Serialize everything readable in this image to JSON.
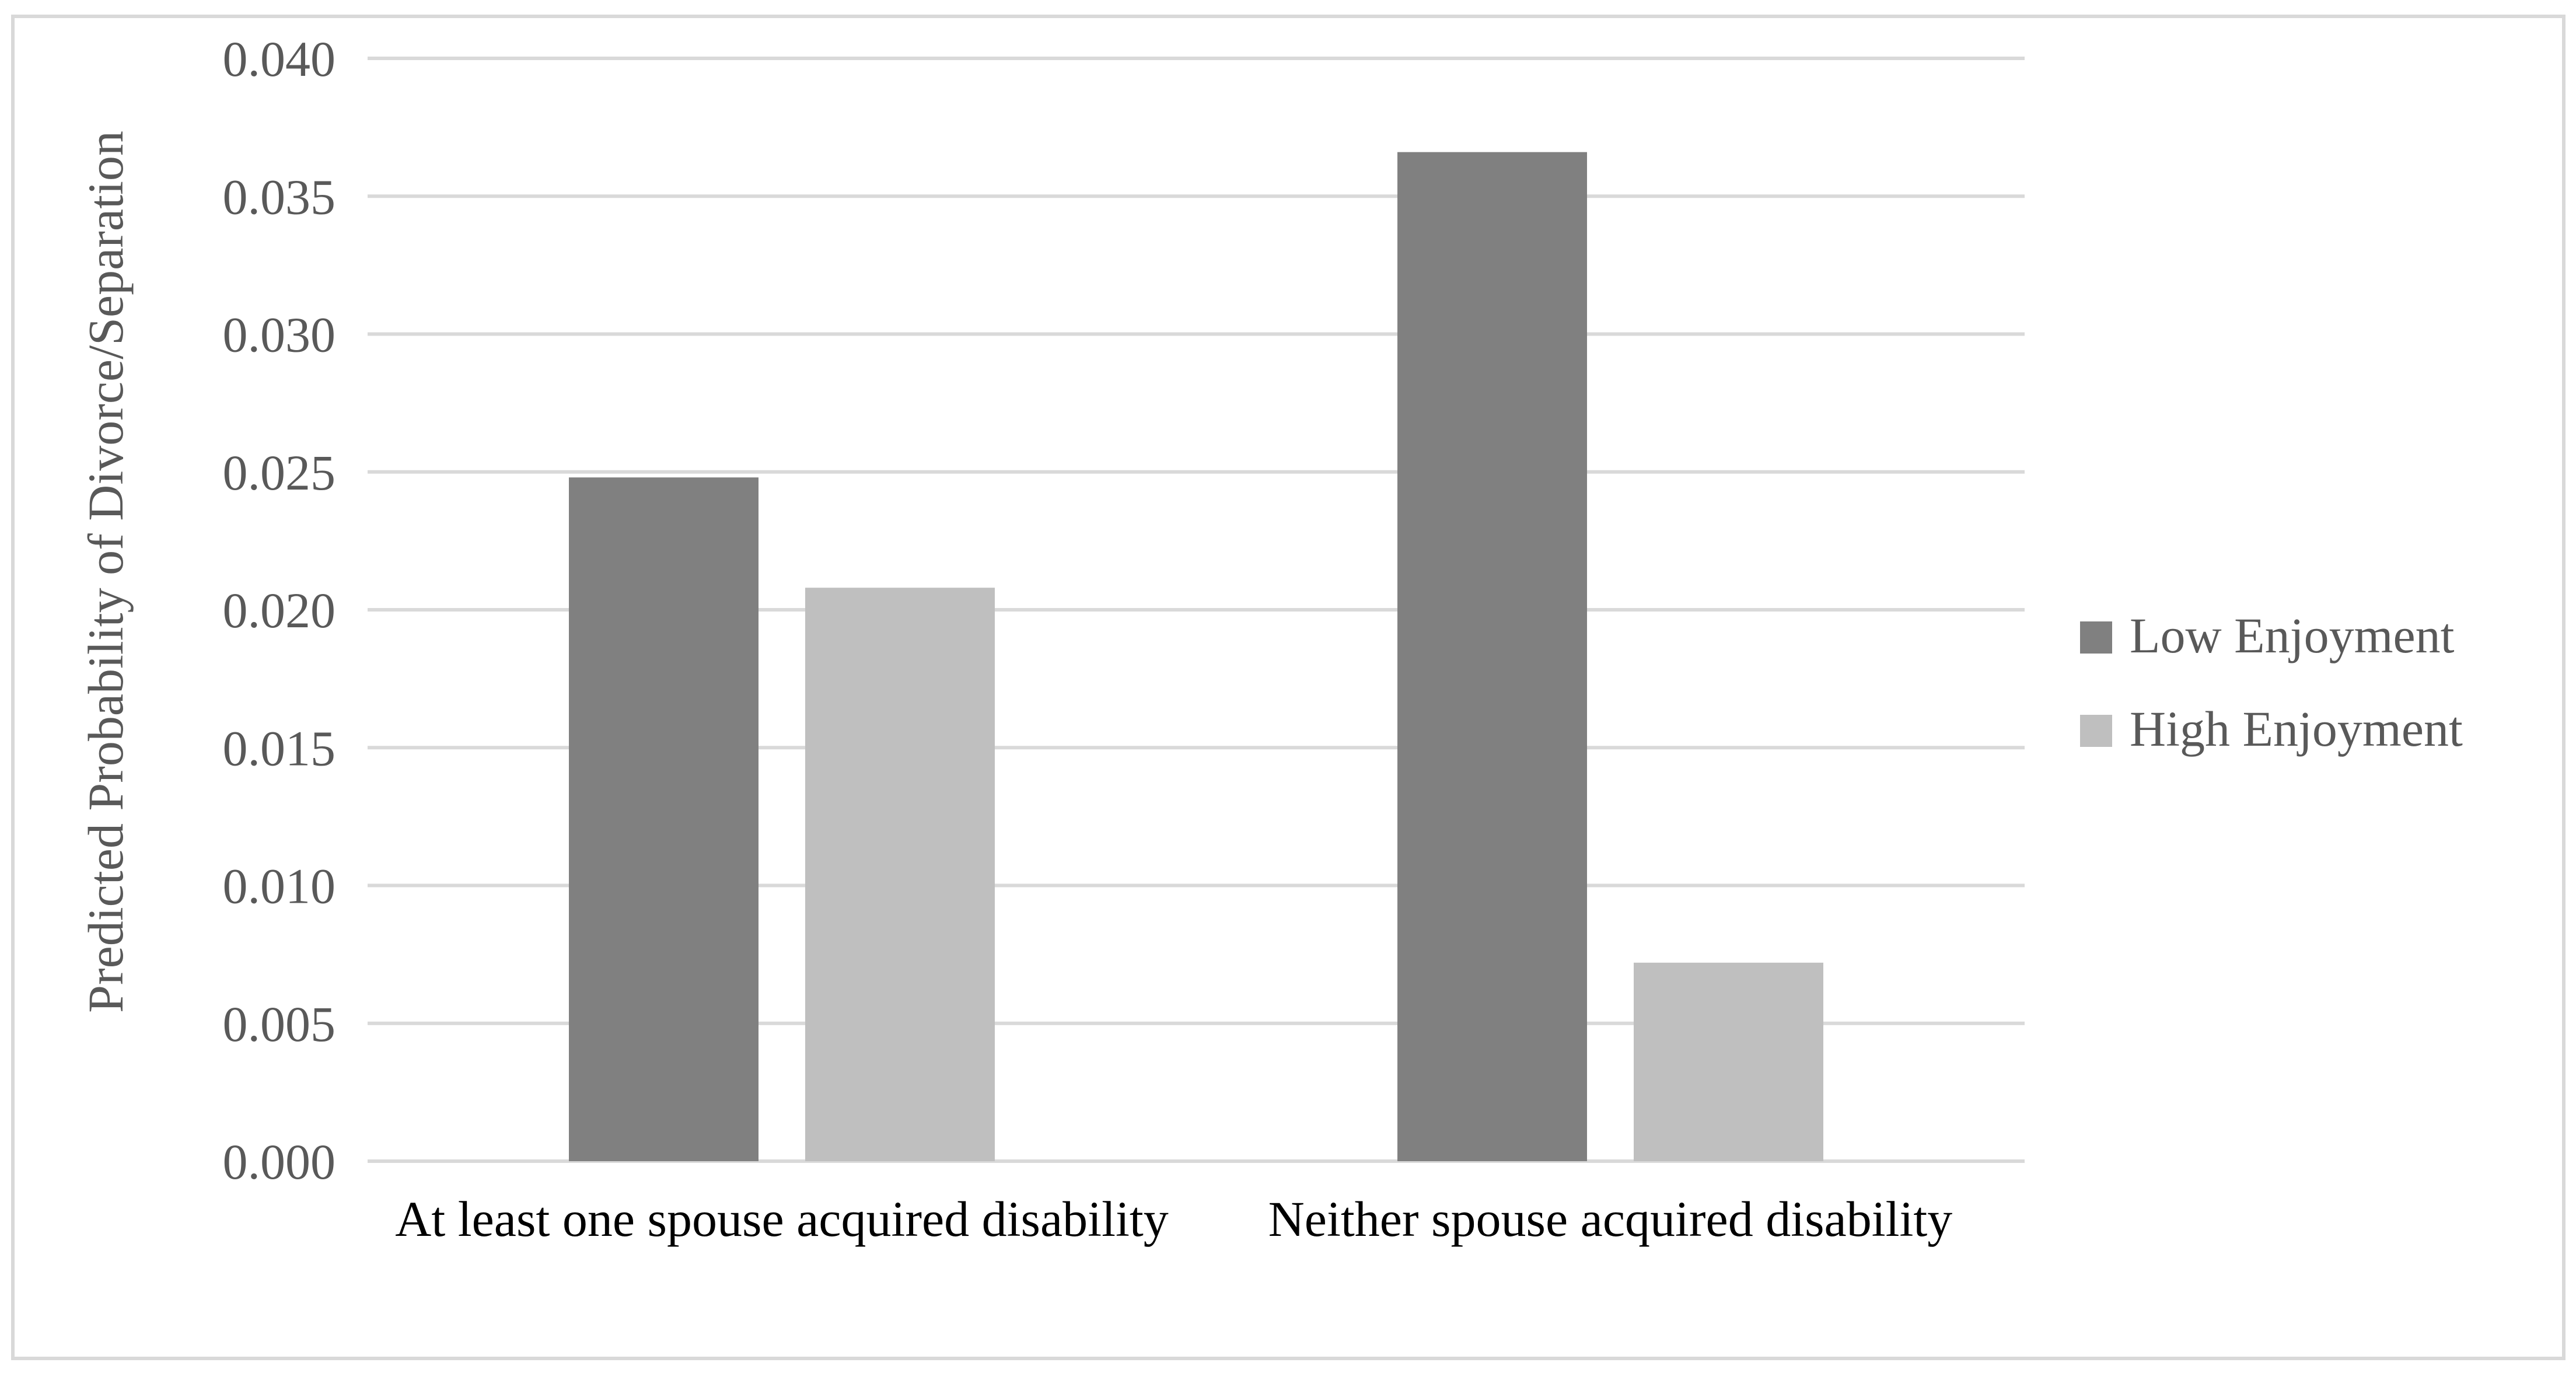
{
  "chart_data": {
    "type": "bar",
    "title": "",
    "xlabel": "",
    "ylabel": "Predicted Probability of Divorce/Separation",
    "categories": [
      "At least one spouse acquired disability",
      "Neither spouse acquired disability"
    ],
    "series": [
      {
        "name": "Low Enjoyment",
        "values": [
          0.0248,
          0.0366
        ],
        "color": "#808080"
      },
      {
        "name": "High Enjoyment",
        "values": [
          0.0208,
          0.0072
        ],
        "color": "#bfbfbf"
      }
    ],
    "ylim": [
      0,
      0.04
    ],
    "yticks": [
      0,
      0.005,
      0.01,
      0.015,
      0.02,
      0.025,
      0.03,
      0.035,
      0.04
    ],
    "ytick_labels": [
      "0.000",
      "0.005",
      "0.010",
      "0.015",
      "0.020",
      "0.025",
      "0.030",
      "0.035",
      "0.040"
    ],
    "grid": true,
    "legend_position": "right"
  }
}
